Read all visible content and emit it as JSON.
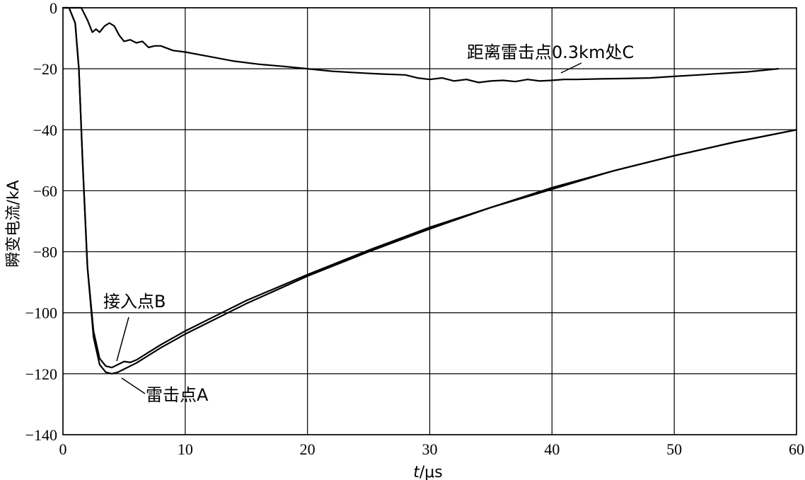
{
  "chart_data": {
    "type": "line",
    "xlabel_italic": "t",
    "xlabel_rest": "/μs",
    "ylabel": "瞬变电流/kA",
    "xlim": [
      0,
      60
    ],
    "ylim": [
      -140,
      0
    ],
    "xticks": [
      0,
      10,
      20,
      30,
      40,
      50,
      60
    ],
    "yticks": [
      0,
      -20,
      -40,
      -60,
      -80,
      -100,
      -120,
      -140
    ],
    "grid": true,
    "series": [
      {
        "name": "雷击点A",
        "x": [
          0,
          0.5,
          1.0,
          1.3,
          1.6,
          2.0,
          2.5,
          3.0,
          3.5,
          4.0,
          4.5,
          5,
          6,
          7,
          8,
          10,
          12,
          15,
          20,
          25,
          30,
          35,
          40,
          45,
          50,
          55,
          60
        ],
        "y": [
          0,
          0,
          -5,
          -20,
          -50,
          -85,
          -108,
          -117,
          -119.5,
          -120,
          -119.5,
          -118.5,
          -116.5,
          -114,
          -111.5,
          -107,
          -103,
          -97,
          -88,
          -80,
          -72.5,
          -65.5,
          -59,
          -53.5,
          -48.5,
          -44,
          -40
        ]
      },
      {
        "name": "接入点B",
        "x": [
          0,
          0.5,
          1.0,
          1.3,
          1.6,
          2.0,
          2.5,
          3.0,
          3.5,
          4.0,
          4.5,
          5,
          5.5,
          6,
          7,
          8,
          10,
          12,
          15,
          20,
          25,
          30,
          35,
          40,
          45,
          50,
          55,
          60
        ],
        "y": [
          0,
          0,
          -5,
          -20,
          -50,
          -85,
          -106,
          -115,
          -117.5,
          -118,
          -117,
          -116,
          -116.3,
          -115.5,
          -113,
          -110.5,
          -106,
          -102,
          -96,
          -87.5,
          -79.5,
          -72,
          -65.5,
          -59.5,
          -53.5,
          -48.5,
          -44,
          -40
        ]
      },
      {
        "name": "距离雷击点0.3km处C",
        "x": [
          0.6,
          1.0,
          1.5,
          2.0,
          2.4,
          2.7,
          3.0,
          3.4,
          3.8,
          4.2,
          4.6,
          5.0,
          5.5,
          6.0,
          6.5,
          7.0,
          7.5,
          8.0,
          9,
          10,
          12,
          14,
          16,
          18,
          20,
          22,
          24,
          26,
          28,
          29,
          30,
          31,
          32,
          33,
          34,
          35,
          36,
          37,
          38,
          39,
          40,
          41,
          42,
          44,
          46,
          48,
          50,
          52,
          54,
          56,
          58.5
        ],
        "y": [
          0,
          0,
          0,
          -4,
          -8,
          -7,
          -8,
          -6,
          -5,
          -6,
          -9,
          -11,
          -10.5,
          -11.5,
          -11,
          -13,
          -12.5,
          -12.5,
          -14,
          -14.5,
          -16,
          -17.5,
          -18.5,
          -19.2,
          -20,
          -20.8,
          -21.3,
          -21.7,
          -22,
          -23,
          -23.5,
          -23,
          -24,
          -23.5,
          -24.5,
          -24,
          -23.8,
          -24.2,
          -23.5,
          -24,
          -23.8,
          -23.5,
          -23.5,
          -23.3,
          -23.2,
          -23,
          -22.5,
          -22,
          -21.5,
          -21,
          -20
        ]
      }
    ],
    "annotations": [
      {
        "text": "接入点B"
      },
      {
        "text": "雷击点A"
      },
      {
        "text": "距离雷击点0.3km处C"
      }
    ]
  }
}
